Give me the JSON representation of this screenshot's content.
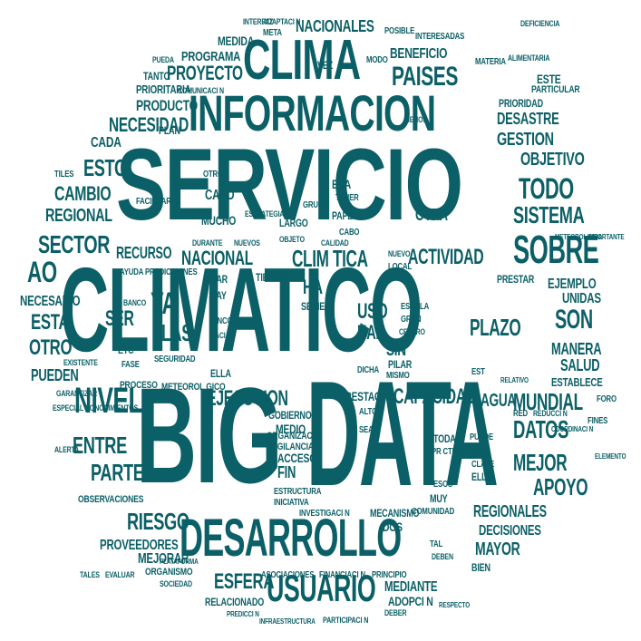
{
  "color": "#0b5f66",
  "words": {
    "servicio": "SERVICIO",
    "climatico": "CLIMATICO",
    "big": "BIG",
    "data": "DATA",
    "informacion": "INFORMACION",
    "clima": "CLIMA",
    "desarrollo": "DESARROLLO",
    "usuario": "USUARIO",
    "paises": "PAISES",
    "nacionales": "NACIONALES",
    "proyecto": "PROYECTO",
    "programa": "PROGRAMA",
    "producto": "PRODUCTO",
    "necesidad": "NECESIDAD",
    "esto": "ESTO",
    "cambio": "CAMBIO",
    "regional": "REGIONAL",
    "sector": "SECTOR",
    "ao": "AO",
    "necesario": "NECESARIO",
    "esta": "ESTA",
    "otro": "OTRO",
    "pueden": "PUEDEN",
    "nivel": "NIVEL",
    "entre": "ENTRE",
    "parte": "PARTE",
    "riesgo": "RIESGO",
    "proveedores": "PROVEEDORES",
    "mejorar": "MEJORAR",
    "esfera": "ESFERA",
    "nacional": "NACIONAL",
    "climatica": "CLIM TICA",
    "actividad": "ACTIVIDAD",
    "sobre": "SOBRE",
    "sistema": "SISTEMA",
    "todo": "TODO",
    "objetivo": "OBJETIVO",
    "gestion": "GESTION",
    "desastre": "DESASTRE",
    "beneficio": "BENEFICIO",
    "ejecucion": "EJECUCION",
    "capacidad": "CAPACIDAD",
    "agua": "AGUA",
    "mundial": "MUNDIAL",
    "datos": "DATOS",
    "mejor": "MEJOR",
    "apoyo": "APOYO",
    "regionales": "REGIONALES",
    "decisiones": "DECISIONES",
    "mayor": "MAYOR",
    "son": "SON",
    "manera": "MANERA",
    "salud": "SALUD",
    "ejemplo": "EJEMPLO",
    "unidas": "UNIDAS",
    "establece": "ESTABLECE",
    "plazo": "PLAZO",
    "recurso": "RECURSO",
    "ya": "YA",
    "las": "LAS",
    "ser": "SER",
    "medida": "MEDIDA",
    "meta": "META",
    "vez": "VEZ",
    "tanto": "TANTO",
    "prioritaria": "PRIORITARIA",
    "plan": "PLAN",
    "cada": "CADA",
    "otra": "OTRA",
    "fin": "FIN",
    "medio": "MEDIO",
    "acceso": "ACCESO",
    "mediante": "MEDIANTE",
    "organizacion": "ORGANIZACI N",
    "prestacion": "PRESTACI N",
    "meteorologico": "METEOROL GICO",
    "observaciones": "OBSERVACIONES",
    "organismo": "ORGANISMO",
    "asociaciones": "ASOCIACIONES",
    "financiacion": "FINANCIACI N",
    "principio": "PRINCIPIO",
    "relacionado": "RELACIONADO",
    "adopcion": "ADOPCI N",
    "comunidad": "COMUNIDAD",
    "mecanismo": "MECANISMO",
    "investigacion": "INVESTIGACI N",
    "iniciativa": "INICIATIVA",
    "estructura": "ESTRUCTURA",
    "gobierno": "GOBIERNO",
    "uso": "USO",
    "han": "HAN",
    "ha": "HA",
    "sin": "SIN",
    "bien": "BIEN",
    "otros": "OTROS",
    "caso": "CASO",
    "mucho": "MUCHO",
    "puede": "PUEDE",
    "hay": "HAY",
    "sea": "SEA",
    "alto": "ALTO",
    "nuevo": "NUEVO",
    "local": "LOCAL",
    "calidad": "CALIDAD",
    "tiempo": "TIEMPO",
    "serie": "SERIE",
    "escala": "ESCALA",
    "gran": "GRAN",
    "centro": "CENTRO",
    "pilar": "PILAR",
    "mismo": "MISMO",
    "dicha": "DICHA",
    "clave": "CLAVE",
    "esos": "ESOS",
    "dos": "DOS",
    "etc": "ETC",
    "seguridad": "SEGURIDAD",
    "vigilancia": "VIGILANCIA",
    "proceso": "PROCESO",
    "garantizar": "GARANTIZAR",
    "especial": "ESPECIAL",
    "conocimientos": "CONOCIMIENTOS",
    "alerta": "ALERTA",
    "tales": "TALES",
    "banco": "BANCO",
    "fase": "FASE",
    "existente": "EXISTENTE",
    "ayuda": "AYUDA",
    "predicciones": "PREDICCIONES",
    "tiles": "TILES",
    "facilitar": "FACILITAR",
    "largo": "LARGO",
    "papel": "PAPEL",
    "grupo": "GRUPO",
    "tener": "TENER",
    "cabo": "CABO",
    "objeto": "OBJETO",
    "durante": "DURANTE",
    "nuevos": "NUEVOS",
    "dar": "DAR",
    "cinco": "CINCO",
    "hacia": "HACIA",
    "ella": "ELLA",
    "esa": "ESA",
    "toda": "TODA",
    "practica": "PR CTICA",
    "omm": "OMM",
    "ello": "ELLO",
    "muy": "MUY",
    "tal": "TAL",
    "deben": "DEBEN",
    "est": "EST",
    "relativo": "RELATIVO",
    "fines": "FINES",
    "foro": "FORO",
    "red": "RED",
    "reduccion": "REDUCCI N",
    "estrategia": "ESTRATEGIA",
    "elemento": "ELEMENTO",
    "meteorologica": "METEOROL GICA",
    "coordinacion": "COORDINACI N",
    "importante": "IMPORTANTE",
    "prestar": "PRESTAR",
    "particular": "PARTICULAR",
    "este": "ESTE",
    "prioridad": "PRIORIDAD",
    "materia": "MATERIA",
    "deficiencia": "DEFICIENCIA",
    "alimentaria": "ALIMENTARIA",
    "comunicacion": "COMUNICACI N",
    "interfaz": "INTERFAZ",
    "interesadas": "INTERESADAS",
    "posible": "POSIBLE",
    "adaptacion": "ADAPTACI N",
    "modo": "MODO",
    "pueda": "PUEDA",
    "menos": "MENOS",
    "infraestructura": "INFRAESTRUCTURA",
    "deber": "DEBER",
    "respecto": "RESPECTO",
    "participacion": "PARTICIPACI N",
    "evaluar": "EVALUAR",
    "sociedad": "SOCIEDAD",
    "plataforma": "PLATAFORMA",
    "prediccion": "PREDICCI N"
  }
}
